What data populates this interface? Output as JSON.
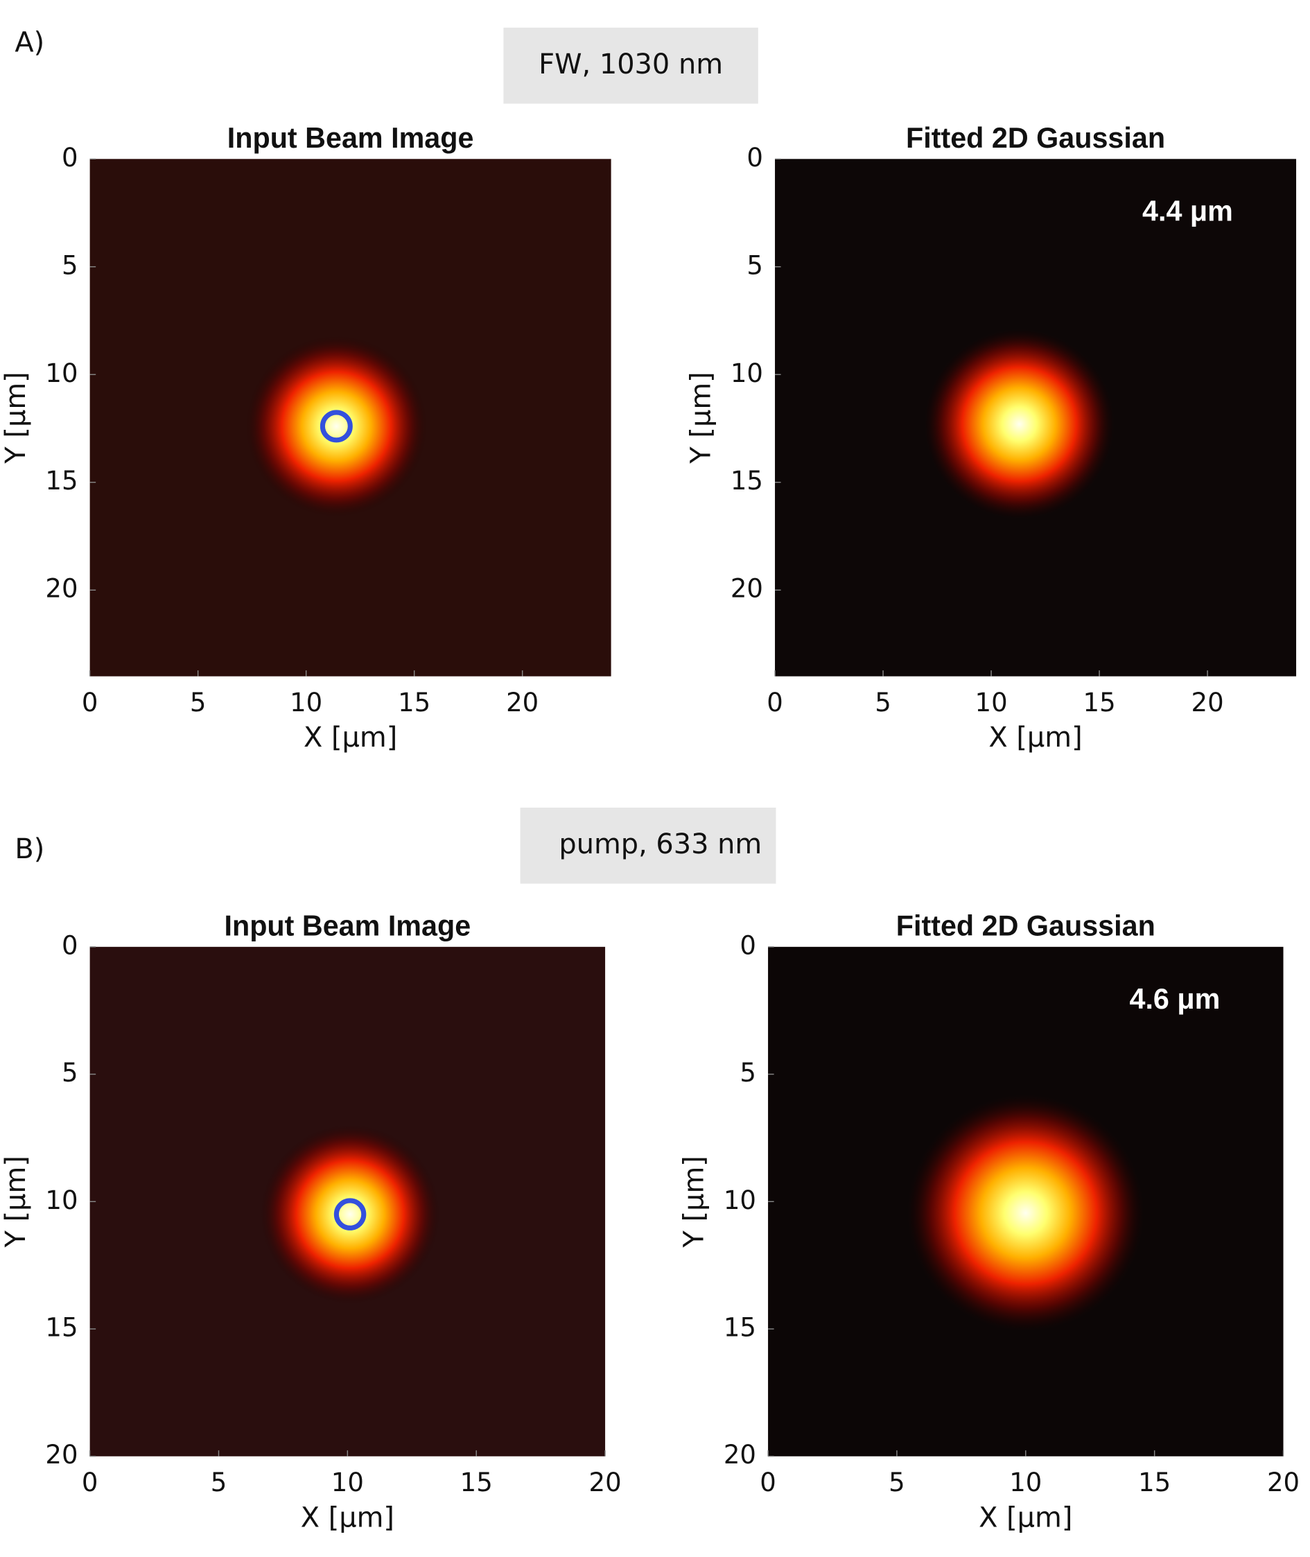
{
  "panels": [
    {
      "label": "A)",
      "header": "FW, 1030 nm"
    },
    {
      "label": "B)",
      "header": "pump, 633 nm"
    }
  ],
  "chart_data": [
    {
      "type": "beam",
      "title": "Input Beam Image",
      "xlabel": "X  [μm]",
      "ylabel": "Y  [μm]",
      "xlim": [
        0,
        24.1
      ],
      "ylim": [
        0,
        24
      ],
      "xticks": [
        0,
        5,
        10,
        15,
        20
      ],
      "yticks": [
        0,
        5,
        10,
        15,
        20
      ],
      "y_reversed": true,
      "background": "#2a0d0a",
      "center": [
        11.4,
        12.4
      ],
      "marker_color": "#3350dd"
    },
    {
      "type": "gaussian",
      "title": "Fitted 2D Gaussian",
      "xlabel": "X  [μm]",
      "ylabel": "Y  [μm]",
      "xlim": [
        0,
        24.1
      ],
      "ylim": [
        0,
        24
      ],
      "xticks": [
        0,
        5,
        10,
        15,
        20
      ],
      "yticks": [
        0,
        5,
        10,
        15,
        20
      ],
      "y_reversed": true,
      "background": "#0d0707",
      "center": [
        11.3,
        12.3
      ],
      "width": 4.4,
      "annotation": "4.4 μm"
    },
    {
      "type": "beam",
      "title": "Input Beam Image",
      "xlabel": "X  [μm]",
      "ylabel": "Y  [μm]",
      "xlim": [
        0,
        20
      ],
      "ylim": [
        0,
        20
      ],
      "xticks": [
        0,
        5,
        10,
        15,
        20
      ],
      "yticks": [
        0,
        5,
        10,
        15,
        20
      ],
      "y_reversed": true,
      "background": "#2a0e0e",
      "center": [
        10.1,
        10.5
      ],
      "marker_color": "#3350dd"
    },
    {
      "type": "gaussian",
      "title": "Fitted 2D Gaussian",
      "xlabel": "X  [μm]",
      "ylabel": "Y  [μm]",
      "xlim": [
        0,
        20
      ],
      "ylim": [
        0,
        20
      ],
      "xticks": [
        0,
        5,
        10,
        15,
        20
      ],
      "yticks": [
        0,
        5,
        10,
        15,
        20
      ],
      "y_reversed": true,
      "background": "#0c0606",
      "center": [
        10.0,
        10.45
      ],
      "width": 4.6,
      "annotation": "4.6 μm"
    }
  ]
}
